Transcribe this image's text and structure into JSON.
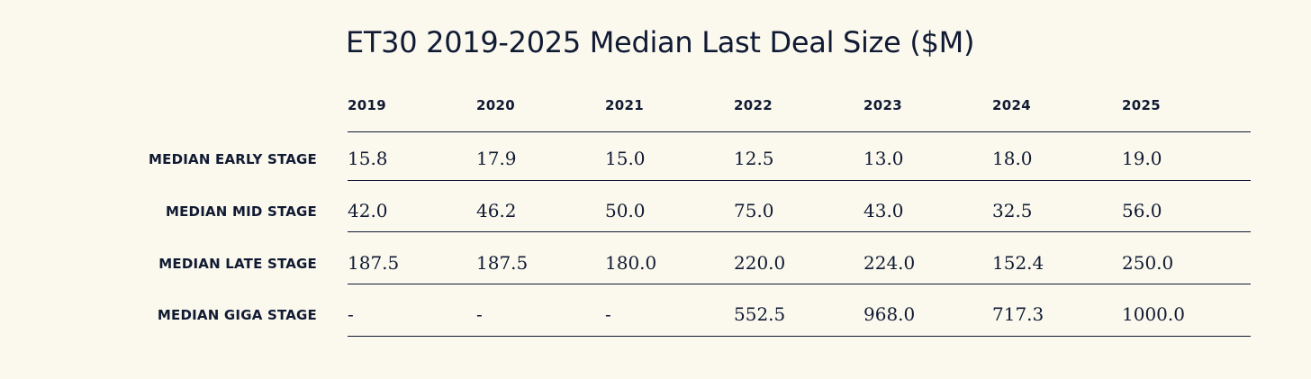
{
  "chart_data": {
    "type": "table",
    "title": "ET30 2019-2025 Median Last Deal Size ($M)",
    "columns": [
      "2019",
      "2020",
      "2021",
      "2022",
      "2023",
      "2024",
      "2025"
    ],
    "rows": [
      {
        "label": "MEDIAN EARLY STAGE",
        "values": [
          "15.8",
          "17.9",
          "15.0",
          "12.5",
          "13.0",
          "18.0",
          "19.0"
        ]
      },
      {
        "label": "MEDIAN MID STAGE",
        "values": [
          "42.0",
          "46.2",
          "50.0",
          "75.0",
          "43.0",
          "32.5",
          "56.0"
        ]
      },
      {
        "label": "MEDIAN LATE STAGE",
        "values": [
          "187.5",
          "187.5",
          "180.0",
          "220.0",
          "224.0",
          "152.4",
          "250.0"
        ]
      },
      {
        "label": "MEDIAN GIGA STAGE",
        "values": [
          "-",
          "-",
          "-",
          "552.5",
          "968.0",
          "717.3",
          "1000.0"
        ]
      }
    ]
  }
}
